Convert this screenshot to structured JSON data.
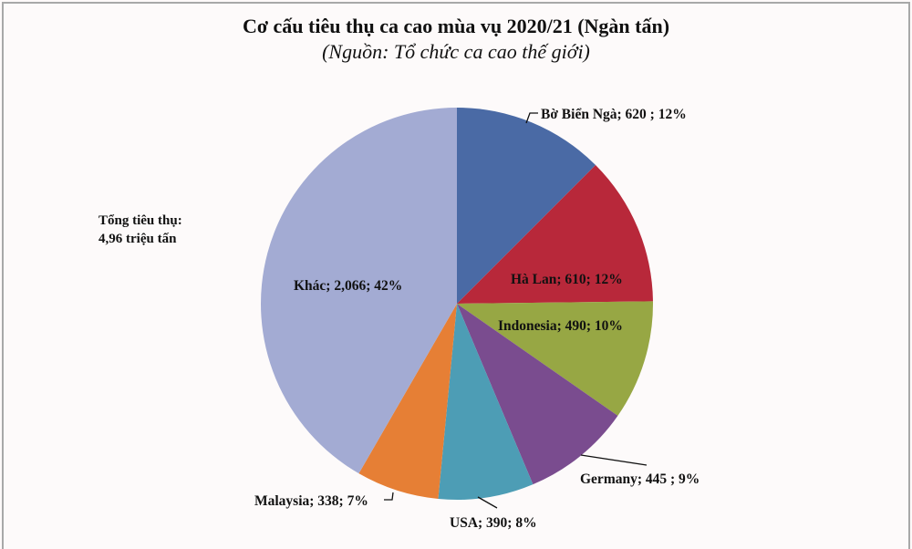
{
  "title": "Cơ cấu tiêu thụ ca cao mùa vụ 2020/21 (Ngàn tấn)",
  "subtitle": "(Nguồn: Tổ chức ca cao thế giới)",
  "annotation": {
    "line1": "Tổng tiêu thụ:",
    "line2": "4,96 triệu tấn"
  },
  "slices": [
    {
      "name": "Bờ Biển Ngà",
      "label": "Bờ Biển Ngà;  620 ; 12%",
      "color": "#4a6aa5"
    },
    {
      "name": "Hà Lan",
      "label": "Hà Lan; 610; 12%",
      "color": "#b8283a"
    },
    {
      "name": "Indonesia",
      "label": "Indonesia; 490; 10%",
      "color": "#97a744"
    },
    {
      "name": "Germany",
      "label": "Germany;  445 ; 9%",
      "color": "#7a4c8f"
    },
    {
      "name": "USA",
      "label": "USA; 390; 8%",
      "color": "#4d9db5"
    },
    {
      "name": "Malaysia",
      "label": "Malaysia; 338; 7%",
      "color": "#e67f35"
    },
    {
      "name": "Khác",
      "label": "Khác; 2,066; 42%",
      "color": "#a3abd3"
    }
  ],
  "chart_data": {
    "type": "pie",
    "title": "Cơ cấu tiêu thụ ca cao mùa vụ 2020/21 (Ngàn tấn)",
    "subtitle": "(Nguồn: Tổ chức ca cao thế giới)",
    "categories": [
      "Bờ Biển Ngà",
      "Hà Lan",
      "Indonesia",
      "Germany",
      "USA",
      "Malaysia",
      "Khác"
    ],
    "values": [
      620,
      610,
      490,
      445,
      390,
      338,
      2066
    ],
    "percentages": [
      12,
      12,
      10,
      9,
      8,
      7,
      42
    ],
    "unit": "Ngàn tấn",
    "annotations": [
      "Tổng tiêu thụ: 4,96 triệu tấn"
    ],
    "start_angle": "12 o'clock",
    "direction": "clockwise",
    "legend": "none (data labels)"
  }
}
